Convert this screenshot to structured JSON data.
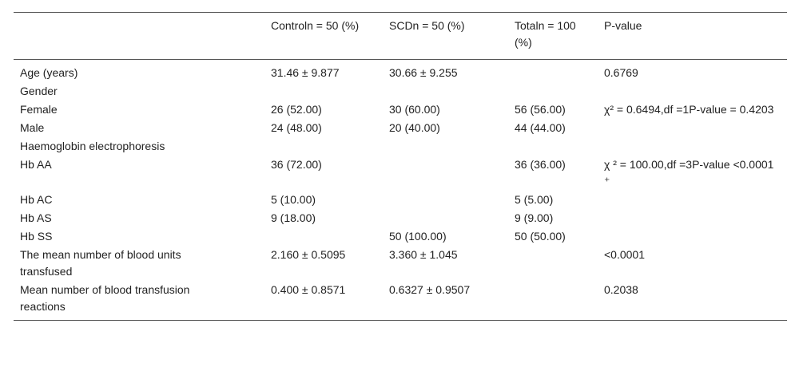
{
  "table": {
    "header": [
      null,
      "Controln = 50 (%)",
      "SCDn = 50 (%)",
      "Totaln = 100 (%)",
      "P-value"
    ],
    "rows": [
      [
        "Age (years)",
        "31.46 ± 9.877",
        "30.66 ± 9.255",
        null,
        "0.6769"
      ],
      [
        "Gender",
        null,
        null,
        null,
        null
      ],
      [
        "Female",
        "26 (52.00)",
        "30 (60.00)",
        "56 (56.00)",
        "χ² = 0.6494,df =1P-value = 0.4203"
      ],
      [
        "Male",
        "24 (48.00)",
        "20 (40.00)",
        "44 (44.00)",
        null
      ],
      [
        "Haemoglobin electrophoresis",
        null,
        null,
        null,
        null
      ],
      [
        "Hb AA",
        "36 (72.00)",
        null,
        "36 (36.00)",
        "χ ² = 100.00,df =3P-value <0.0001 ⁺"
      ],
      [
        "Hb AC",
        "5 (10.00)",
        null,
        "5 (5.00)",
        null
      ],
      [
        "Hb AS",
        "9 (18.00)",
        null,
        "9 (9.00)",
        null
      ],
      [
        "Hb SS",
        null,
        "50 (100.00)",
        "50 (50.00)",
        null
      ],
      [
        "The mean number of blood units transfused",
        "2.160 ± 0.5095",
        "3.360 ± 1.045",
        null,
        "<0.0001"
      ],
      [
        "Mean number of blood transfusion reactions",
        "0.400 ± 0.8571",
        "0.6327 ± 0.9507",
        null,
        "0.2038"
      ]
    ]
  }
}
